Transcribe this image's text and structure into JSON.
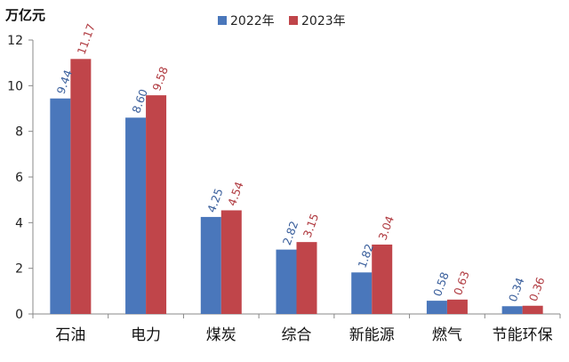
{
  "chart_data": {
    "type": "bar",
    "title": "",
    "ylabel": "万亿元",
    "xlabel": "",
    "ylim": [
      0,
      12
    ],
    "yticks": [
      0,
      2,
      4,
      6,
      8,
      10,
      12
    ],
    "grid": false,
    "legend_position": "top-center",
    "categories": [
      "石油",
      "电力",
      "煤炭",
      "综合",
      "新能源",
      "燃气",
      "节能环保"
    ],
    "series": [
      {
        "name": "2022年",
        "color": "#4a77bb",
        "label_color": "#3a5f9c",
        "values": [
          9.44,
          8.6,
          4.25,
          2.82,
          1.82,
          0.58,
          0.34
        ],
        "labels": [
          "9.44",
          "8.60",
          "4.25",
          "2.82",
          "1.82",
          "0.58",
          "0.34"
        ]
      },
      {
        "name": "2023年",
        "color": "#c0454a",
        "label_color": "#b03a40",
        "values": [
          11.17,
          9.58,
          4.54,
          3.15,
          3.04,
          0.63,
          0.36
        ],
        "labels": [
          "11.17",
          "9.58",
          "4.54",
          "3.15",
          "3.04",
          "0.63",
          "0.36"
        ]
      }
    ]
  }
}
